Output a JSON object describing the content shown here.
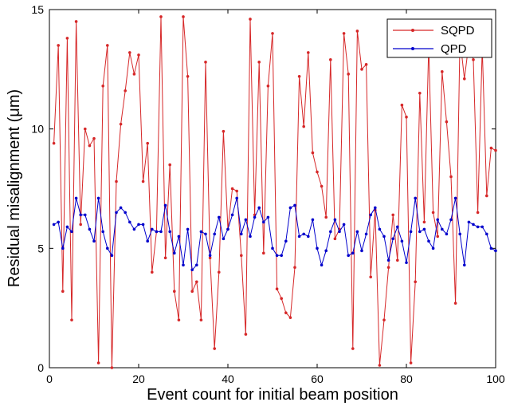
{
  "chart_data": {
    "type": "line",
    "title": "",
    "xlabel": "Event count for initial beam position",
    "ylabel": "Residual misalignment (μm)",
    "xlim": [
      0,
      100
    ],
    "ylim": [
      0,
      15
    ],
    "xticks": [
      0,
      20,
      40,
      60,
      80,
      100
    ],
    "yticks": [
      0,
      5,
      10,
      15
    ],
    "grid": false,
    "legend_position": "top-right",
    "x": [
      1,
      2,
      3,
      4,
      5,
      6,
      7,
      8,
      9,
      10,
      11,
      12,
      13,
      14,
      15,
      16,
      17,
      18,
      19,
      20,
      21,
      22,
      23,
      24,
      25,
      26,
      27,
      28,
      29,
      30,
      31,
      32,
      33,
      34,
      35,
      36,
      37,
      38,
      39,
      40,
      41,
      42,
      43,
      44,
      45,
      46,
      47,
      48,
      49,
      50,
      51,
      52,
      53,
      54,
      55,
      56,
      57,
      58,
      59,
      60,
      61,
      62,
      63,
      64,
      65,
      66,
      67,
      68,
      69,
      70,
      71,
      72,
      73,
      74,
      75,
      76,
      77,
      78,
      79,
      80,
      81,
      82,
      83,
      84,
      85,
      86,
      87,
      88,
      89,
      90,
      91,
      92,
      93,
      94,
      95,
      96,
      97,
      98,
      99,
      100
    ],
    "series": [
      {
        "name": "SQPD",
        "color": "#d62728",
        "marker": "dot",
        "values": [
          9.4,
          13.5,
          3.2,
          13.8,
          2.0,
          14.5,
          6.0,
          10.0,
          9.3,
          9.6,
          0.2,
          11.8,
          13.5,
          0.0,
          7.8,
          10.2,
          11.6,
          13.2,
          12.3,
          13.1,
          7.8,
          9.4,
          4.0,
          5.7,
          14.7,
          4.6,
          8.5,
          3.2,
          2.0,
          14.7,
          12.2,
          3.2,
          3.6,
          2.0,
          12.8,
          4.6,
          0.8,
          4.0,
          9.9,
          5.8,
          7.5,
          7.4,
          4.7,
          1.4,
          14.6,
          6.4,
          12.8,
          4.8,
          11.8,
          14.0,
          3.3,
          2.9,
          2.3,
          2.1,
          4.2,
          12.2,
          10.1,
          13.2,
          9.0,
          8.2,
          7.6,
          6.3,
          12.9,
          5.4,
          5.8,
          14.0,
          12.3,
          0.8,
          14.1,
          12.5,
          12.7,
          3.8,
          6.6,
          0.1,
          2.0,
          4.2,
          6.4,
          4.5,
          11.0,
          10.5,
          0.2,
          3.6,
          11.5,
          6.1,
          13.5,
          6.5,
          5.5,
          12.4,
          10.3,
          8.0,
          2.7,
          13.8,
          12.1,
          13.6,
          12.9,
          6.5,
          13.4,
          7.2,
          9.2,
          9.1
        ]
      },
      {
        "name": "QPD",
        "color": "#0000cc",
        "marker": "dot",
        "values": [
          6.0,
          6.1,
          5.0,
          5.9,
          5.7,
          7.1,
          6.4,
          6.4,
          5.8,
          5.3,
          7.1,
          5.7,
          5.0,
          4.7,
          6.5,
          6.7,
          6.5,
          6.1,
          5.8,
          6.0,
          6.0,
          5.3,
          5.8,
          5.7,
          5.7,
          6.8,
          5.7,
          4.8,
          5.5,
          4.3,
          5.8,
          4.1,
          4.3,
          5.7,
          5.6,
          4.7,
          5.6,
          6.3,
          5.4,
          5.8,
          6.4,
          7.1,
          5.6,
          6.2,
          5.5,
          6.3,
          6.7,
          6.1,
          6.3,
          5.0,
          4.7,
          4.7,
          5.3,
          6.7,
          6.8,
          5.5,
          5.6,
          5.5,
          6.2,
          5.0,
          4.3,
          4.9,
          5.7,
          6.2,
          5.7,
          6.0,
          4.7,
          4.8,
          5.7,
          4.9,
          5.6,
          6.4,
          6.7,
          5.8,
          5.5,
          4.5,
          5.4,
          5.9,
          5.3,
          4.4,
          5.7,
          7.1,
          5.7,
          5.8,
          5.3,
          5.0,
          6.2,
          5.8,
          5.6,
          6.2,
          7.1,
          5.6,
          4.3,
          6.1,
          6.0,
          5.9,
          5.9,
          5.6,
          5.0,
          4.9
        ]
      }
    ]
  }
}
